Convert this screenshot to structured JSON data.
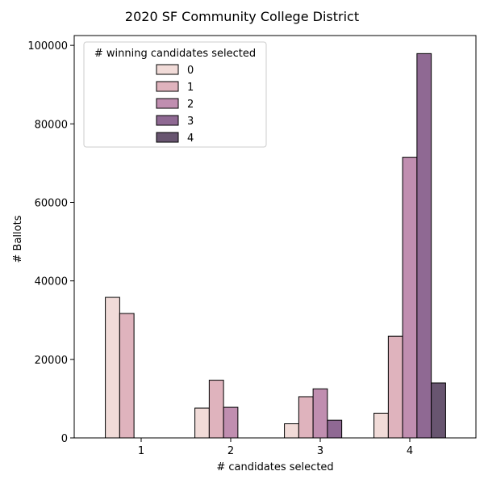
{
  "chart_data": {
    "type": "bar",
    "title": "2020 SF Community College District",
    "xlabel": "# candidates selected",
    "ylabel": "# Ballots",
    "categories": [
      "1",
      "2",
      "3",
      "4"
    ],
    "ylim": [
      0,
      102500
    ],
    "yticks": [
      0,
      20000,
      40000,
      60000,
      80000,
      100000
    ],
    "grid": false,
    "legend": {
      "title": "# winning candidates selected",
      "placement": "top-left"
    },
    "series": [
      {
        "name": "0",
        "color": "#f1dbd8",
        "values": [
          35800,
          7600,
          3600,
          6300
        ]
      },
      {
        "name": "1",
        "color": "#dfb3bd",
        "values": [
          31700,
          14700,
          10500,
          25900
        ]
      },
      {
        "name": "2",
        "color": "#c08eb0",
        "values": [
          0,
          7800,
          12500,
          71500
        ]
      },
      {
        "name": "3",
        "color": "#8f6993",
        "values": [
          0,
          0,
          4500,
          97900
        ]
      },
      {
        "name": "4",
        "color": "#685570",
        "values": [
          0,
          0,
          0,
          14000
        ]
      }
    ]
  }
}
